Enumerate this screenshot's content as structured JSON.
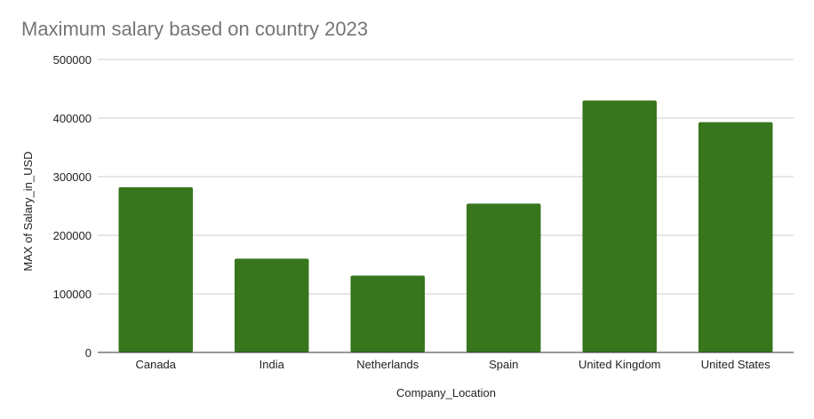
{
  "chart_data": {
    "type": "bar",
    "title": "Maximum salary based on country 2023",
    "xlabel": "Company_Location",
    "ylabel": "MAX of Salary_in_USD",
    "categories": [
      "Canada",
      "India",
      "Netherlands",
      "Spain",
      "United Kingdom",
      "United States"
    ],
    "series": [
      {
        "values": [
          282000,
          160000,
          131000,
          254000,
          430000,
          393000
        ]
      }
    ],
    "ylim": [
      0,
      500000
    ],
    "yticks": [
      "0",
      "100000",
      "200000",
      "300000",
      "400000",
      "500000"
    ],
    "grid": true,
    "legend": "none",
    "bar_color": "#38761d"
  }
}
